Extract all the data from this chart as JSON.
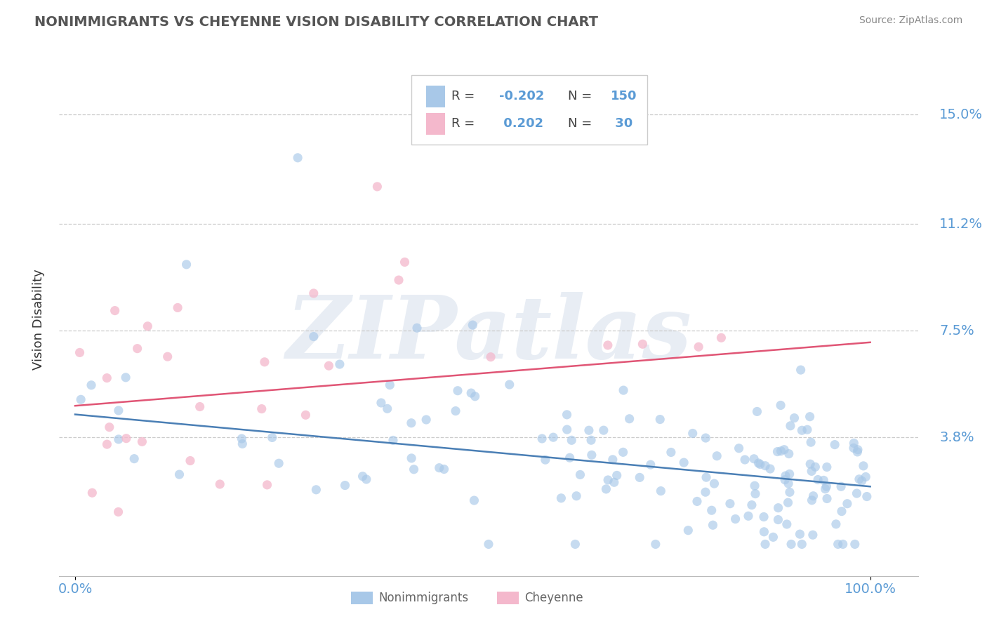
{
  "title": "NONIMMIGRANTS VS CHEYENNE VISION DISABILITY CORRELATION CHART",
  "source": "Source: ZipAtlas.com",
  "ylabel": "Vision Disability",
  "watermark": "ZIPatlas",
  "legend_label1": "Nonimmigrants",
  "legend_label2": "Cheyenne",
  "R1": -0.202,
  "N1": 150,
  "R2": 0.202,
  "N2": 30,
  "blue_color": "#a8c8e8",
  "pink_color": "#f4b8cc",
  "blue_line_color": "#4a7fb5",
  "pink_line_color": "#e05575",
  "title_color": "#555555",
  "axis_label_color": "#5b9bd5",
  "ytick_labels": [
    "15.0%",
    "11.2%",
    "7.5%",
    "3.8%"
  ],
  "ytick_values": [
    0.15,
    0.112,
    0.075,
    0.038
  ],
  "xtick_labels": [
    "0.0%",
    "100.0%"
  ],
  "xtick_values": [
    0.0,
    1.0
  ],
  "xlim": [
    -0.02,
    1.06
  ],
  "ylim": [
    -0.01,
    0.168
  ],
  "background_color": "#ffffff",
  "grid_color": "#cccccc",
  "ylabel_color": "#333333"
}
